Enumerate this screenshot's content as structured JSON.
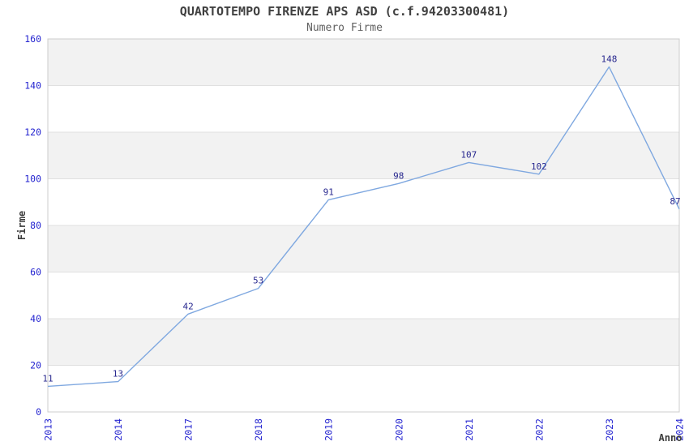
{
  "header": {
    "title": "QUARTOTEMPO FIRENZE APS ASD (c.f.94203300481)",
    "subtitle": "Numero Firme"
  },
  "chart_data": {
    "type": "line",
    "title": "QUARTOTEMPO FIRENZE APS ASD (c.f.94203300481)",
    "subtitle": "Numero Firme",
    "categories": [
      "2013",
      "2014",
      "2017",
      "2018",
      "2019",
      "2020",
      "2021",
      "2022",
      "2023",
      "2024"
    ],
    "series": [
      {
        "name": "Numero Firme",
        "values": [
          11,
          13,
          42,
          53,
          91,
          98,
          107,
          102,
          148,
          87
        ]
      }
    ],
    "data_labels": [
      "11",
      "13",
      "42",
      "53",
      "91",
      "98",
      "107",
      "102",
      "148",
      "87"
    ],
    "xlabel": "Anno",
    "ylabel": "Firme",
    "ylim": [
      0,
      160
    ],
    "ytick_step": 20,
    "yticks": [
      0,
      20,
      40,
      60,
      80,
      100,
      120,
      140,
      160
    ],
    "grid": "horizontal-bands-alternating",
    "legend": "none",
    "colors": {
      "line": "#7fa8e0",
      "tick_label": "#2525d0",
      "data_label": "#28288f",
      "band_fill": "#f2f2f2",
      "gridline": "#e0e0e0",
      "plot_border": "#cccccc",
      "title": "#404040",
      "subtitle": "#606060",
      "axis_label": "#3d3d3d",
      "background": "#ffffff"
    }
  }
}
